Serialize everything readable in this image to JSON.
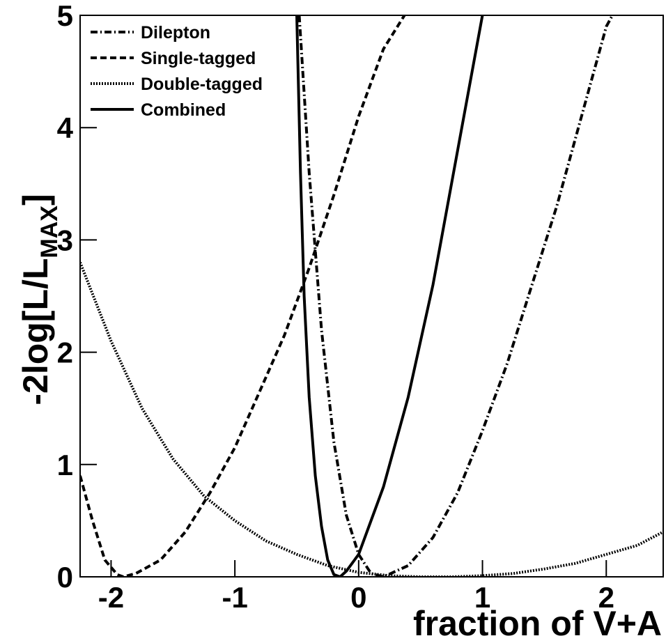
{
  "chart_data": {
    "type": "line",
    "xlabel": "fraction of V+A",
    "ylabel": "-2log[L/L",
    "ylabel_sub": "MAX",
    "ylabel_end": "]",
    "xlim": [
      -2.25,
      2.46
    ],
    "ylim": [
      0,
      5
    ],
    "xticks": [
      -2,
      -1,
      0,
      1,
      2
    ],
    "yticks": [
      0,
      1,
      2,
      3,
      4,
      5
    ],
    "legend": "upper left",
    "series": [
      {
        "name": "Dilepton",
        "color": "#000000",
        "dash": "dashdot",
        "x": [
          -0.48,
          -0.4,
          -0.3,
          -0.2,
          -0.1,
          0,
          0.1,
          0.2,
          0.4,
          0.6,
          0.8,
          1.0,
          1.2,
          1.4,
          1.6,
          1.8,
          2.0,
          2.05
        ],
        "values": [
          5,
          3.6,
          2.2,
          1.2,
          0.55,
          0.2,
          0.03,
          0,
          0.1,
          0.35,
          0.75,
          1.3,
          1.9,
          2.6,
          3.3,
          4.1,
          4.9,
          5
        ]
      },
      {
        "name": "Single-tagged",
        "color": "#000000",
        "dash": "dashed",
        "x": [
          -2.25,
          -2.15,
          -2.05,
          -1.95,
          -1.9,
          -1.8,
          -1.6,
          -1.4,
          -1.2,
          -1.0,
          -0.8,
          -0.6,
          -0.4,
          -0.2,
          0,
          0.2,
          0.37
        ],
        "values": [
          0.9,
          0.5,
          0.15,
          0.02,
          0,
          0.03,
          0.15,
          0.4,
          0.75,
          1.15,
          1.65,
          2.15,
          2.75,
          3.4,
          4.1,
          4.7,
          5
        ]
      },
      {
        "name": "Double-tagged",
        "color": "#000000",
        "dash": "dotted",
        "x": [
          -2.25,
          -2,
          -1.75,
          -1.5,
          -1.25,
          -1,
          -0.75,
          -0.5,
          -0.25,
          0,
          0.25,
          0.5,
          0.75,
          1,
          1.25,
          1.5,
          1.75,
          2,
          2.25,
          2.46
        ],
        "values": [
          2.8,
          2.1,
          1.5,
          1.05,
          0.72,
          0.5,
          0.32,
          0.2,
          0.1,
          0.04,
          0.01,
          0,
          0,
          0.01,
          0.03,
          0.07,
          0.12,
          0.2,
          0.28,
          0.4
        ]
      },
      {
        "name": "Combined",
        "color": "#000000",
        "dash": "solid",
        "x": [
          -0.5,
          -0.47,
          -0.44,
          -0.4,
          -0.35,
          -0.3,
          -0.25,
          -0.2,
          -0.15,
          -0.1,
          0,
          0.2,
          0.4,
          0.6,
          0.8,
          1.0
        ],
        "values": [
          5,
          3.6,
          2.5,
          1.6,
          0.9,
          0.45,
          0.15,
          0.02,
          0,
          0.05,
          0.2,
          0.8,
          1.6,
          2.6,
          3.8,
          5
        ]
      }
    ]
  }
}
